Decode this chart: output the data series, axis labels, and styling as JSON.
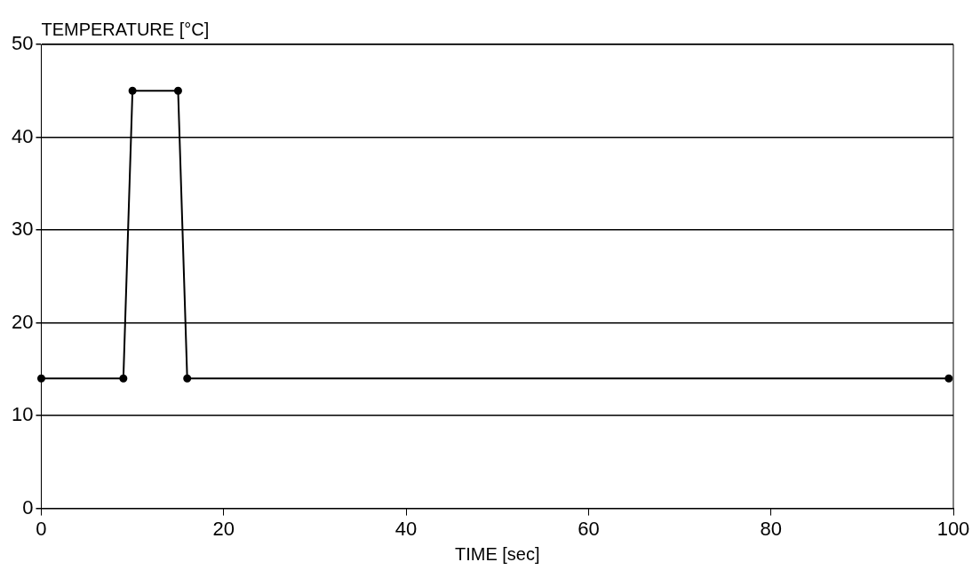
{
  "chart_data": {
    "type": "line",
    "xlabel": "TIME [sec]",
    "ylabel": "TEMPERATURE [°C]",
    "series": [
      {
        "color": "#000000",
        "x": [
          0,
          9,
          10,
          15,
          16,
          99.5
        ],
        "values": [
          14,
          14,
          45,
          45,
          14,
          14
        ]
      }
    ],
    "xlim": [
      0,
      100
    ],
    "xticks": [
      0,
      20,
      40,
      60,
      80,
      100
    ],
    "ylim": [
      0,
      50
    ],
    "yticks": [
      0,
      10,
      20,
      30,
      40,
      50
    ],
    "grid": "y",
    "legend": false,
    "marker": "circle",
    "line_style": "solid"
  }
}
